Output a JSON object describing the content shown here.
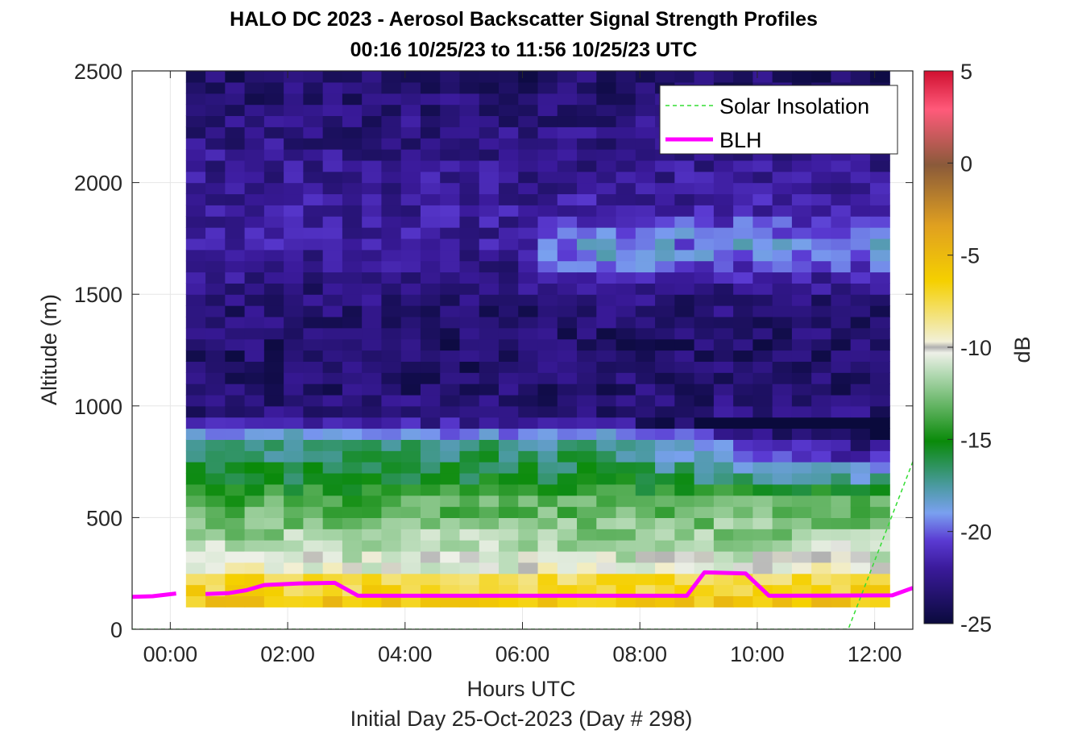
{
  "title_line1": "HALO DC 2023 - Aerosol Backscatter Signal Strength Profiles",
  "title_line2": "00:16 10/25/23 to 11:56 10/25/23  UTC",
  "xlabel": "Hours UTC",
  "xlabel2": "Initial Day 25-Oct-2023 (Day # 298)",
  "ylabel": "Altitude (m)",
  "colorbar_label": "dB",
  "legend": {
    "solar": "Solar Insolation",
    "blh": "BLH",
    "placement": "top-right"
  },
  "colors": {
    "solar_line": "#33dd33",
    "blh_line": "#ff00ff"
  },
  "chart_data": {
    "type": "heatmap",
    "title": "HALO DC 2023 - Aerosol Backscatter Signal Strength Profiles",
    "subtitle": "00:16 10/25/23 to 11:56 10/25/23  UTC",
    "xlabel": "Hours UTC",
    "ylabel": "Altitude (m)",
    "xlim": [
      -0.65,
      12.65
    ],
    "ylim": [
      0,
      2500
    ],
    "x_ticks": [
      0,
      2,
      4,
      6,
      8,
      10,
      12
    ],
    "x_tick_labels": [
      "00:00",
      "02:00",
      "04:00",
      "06:00",
      "08:00",
      "10:00",
      "12:00"
    ],
    "y_ticks": [
      0,
      500,
      1000,
      1500,
      2000,
      2500
    ],
    "y_tick_labels": [
      "0",
      "500",
      "1000",
      "1500",
      "2000",
      "2500"
    ],
    "grid": true,
    "colorbar": {
      "min": -25,
      "max": 5,
      "ticks": [
        -25,
        -20,
        -15,
        -10,
        -5,
        0,
        5
      ],
      "label": "dB"
    },
    "heatmap_extent": {
      "x_start_hours": 0.267,
      "x_end_hours": 11.933,
      "x_step_hours": 0.333,
      "z_bottom_m": 100,
      "z_top_m": 2500,
      "z_step_m": 50
    },
    "dB_profile_hint": {
      "altitudes_m": [
        125,
        175,
        225,
        275,
        325,
        375,
        425,
        475,
        525,
        575,
        625,
        675,
        725,
        775,
        825,
        875,
        925,
        975,
        1100,
        1300,
        1500,
        1700,
        1900,
        2100,
        2300,
        2475
      ],
      "mean_dB": [
        -6,
        -7,
        -7.5,
        -10,
        -11,
        -11.5,
        -12,
        -12.5,
        -13,
        -13.5,
        -14.5,
        -15.5,
        -16,
        -16.5,
        -17,
        -19,
        -22,
        -23,
        -23.5,
        -23.5,
        -23,
        -22,
        -22,
        -22.5,
        -23,
        -23.5
      ]
    },
    "series": [
      {
        "name": "Solar Insolation",
        "x": [
          -0.65,
          11.55,
          12.65
        ],
        "y": [
          0,
          0,
          750
        ]
      },
      {
        "name": "BLH",
        "segments": [
          {
            "x": [
              -0.65,
              -0.3,
              0.1
            ],
            "y": [
              145,
              148,
              160
            ]
          },
          {
            "x": [
              0.6,
              1.0,
              1.3,
              1.6,
              2.2,
              2.8,
              3.2,
              8.8,
              9.1,
              9.8,
              10.2,
              12.3,
              12.65
            ],
            "y": [
              158,
              162,
              175,
              198,
              205,
              208,
              150,
              150,
              255,
              250,
              150,
              152,
              185
            ]
          }
        ]
      }
    ]
  }
}
